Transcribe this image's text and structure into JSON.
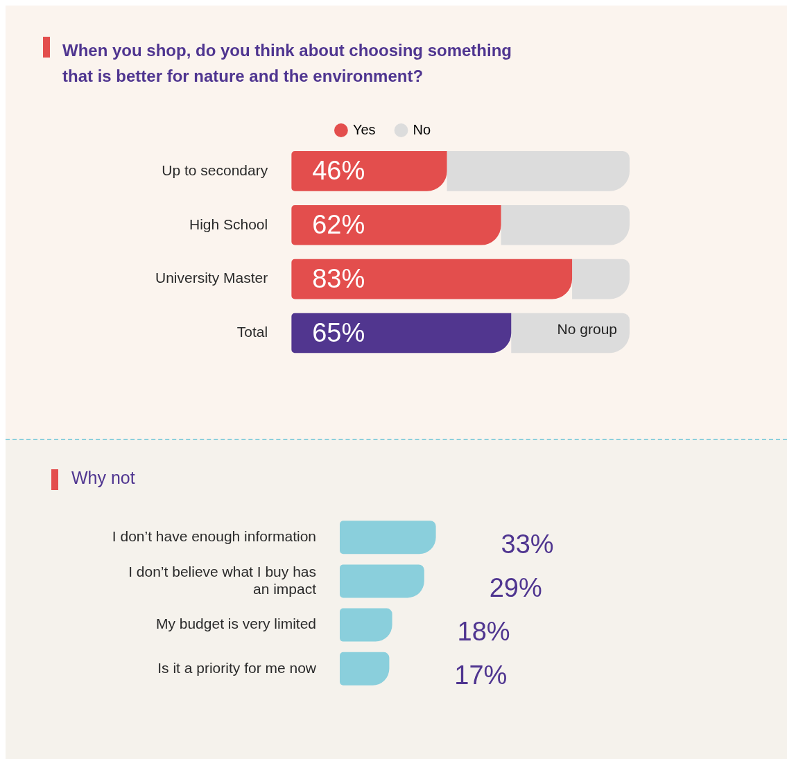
{
  "chart_data": [
    {
      "type": "bar",
      "orientation": "horizontal",
      "stacked": true,
      "title": "When you shop, do you think about choosing something that is better for nature and the environment?",
      "categories": [
        "Up to secondary",
        "High School",
        "University Master",
        "Total"
      ],
      "legend": "top",
      "annotations": [
        "No group"
      ],
      "series": [
        {
          "name": "Yes",
          "color": "#e34e4d",
          "colors": [
            "#e34e4d",
            "#e34e4d",
            "#e34e4d",
            "#51368f"
          ],
          "values": [
            46,
            62,
            83,
            65
          ],
          "value_labels": [
            "46%",
            "62%",
            "83%",
            "65%"
          ]
        },
        {
          "name": "No",
          "color": "#dcdcdc",
          "values": [
            54,
            38,
            17,
            35
          ]
        }
      ]
    },
    {
      "type": "bar",
      "orientation": "horizontal",
      "title": "Why not",
      "categories": [
        "I don’t have enough information",
        "I don’t believe what I buy has an impact",
        "My budget is very limited",
        "Is it a priority for me now"
      ],
      "color": "#8acfdc",
      "values": [
        33,
        29,
        18,
        17
      ],
      "value_labels": [
        "33%",
        "29%",
        "18%",
        "17%"
      ]
    }
  ]
}
